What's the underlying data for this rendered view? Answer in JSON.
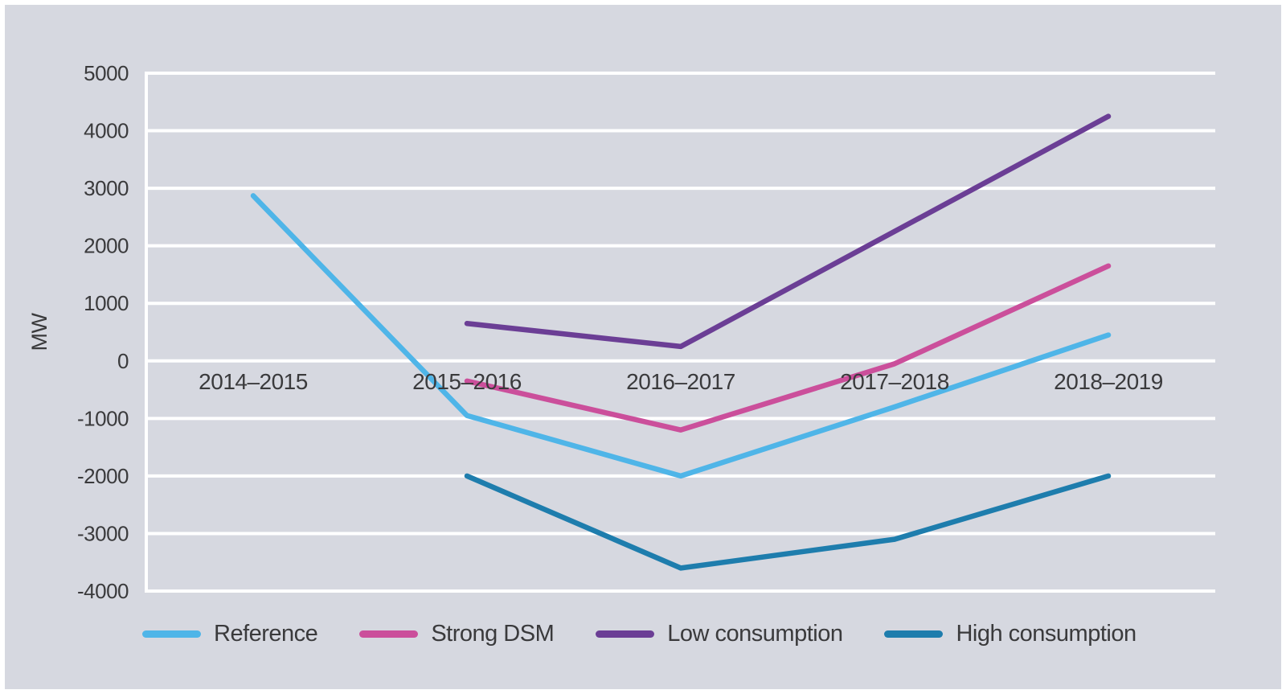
{
  "figure": {
    "page_background": "#ffffff",
    "canvas_background": "#d6d8e0",
    "gridline_color": "#ffffff",
    "axis_line_color": "#ffffff",
    "text_color": "#3a3a3c"
  },
  "chart_data": {
    "type": "line",
    "title": "",
    "xlabel": "",
    "ylabel": "MW",
    "unit": "MW",
    "grid": "horizontal-white-lines",
    "legend_position": "bottom",
    "categories": [
      "2014–2015",
      "2015–2016",
      "2016–2017",
      "2017–2018",
      "2018–2019"
    ],
    "y_min": -4000,
    "y_max": 5000,
    "y_tick_step": 1000,
    "y_ticks": [
      5000,
      4000,
      3000,
      2000,
      1000,
      0,
      -1000,
      -2000,
      -3000,
      -4000
    ],
    "series": [
      {
        "name": "Reference",
        "color": "#4fb5e8",
        "values": [
          2870,
          -950,
          -2000,
          -800,
          450
        ]
      },
      {
        "name": "Strong DSM",
        "color": "#cb4f9b",
        "values": [
          null,
          -350,
          -1200,
          -50,
          1650
        ]
      },
      {
        "name": "Low consumption",
        "color": "#6b3e95",
        "values": [
          null,
          650,
          250,
          2250,
          4250
        ]
      },
      {
        "name": "High consumption",
        "color": "#1e7dad",
        "values": [
          null,
          -2000,
          -3600,
          -3100,
          -2000
        ]
      }
    ]
  }
}
